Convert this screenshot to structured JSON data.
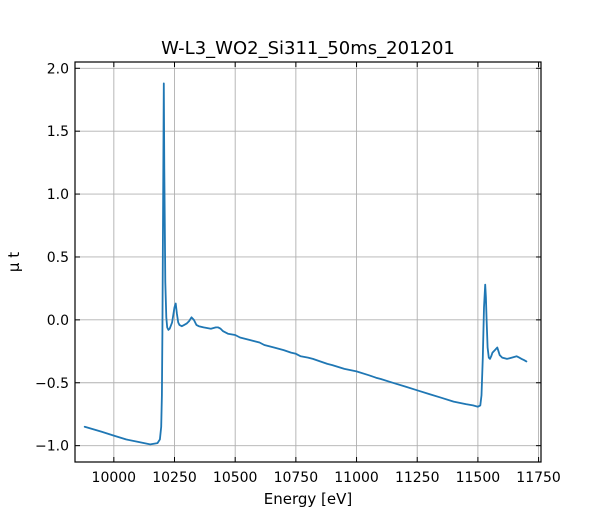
{
  "chart_data": {
    "type": "line",
    "title": "W-L3_WO2_Si311_50ms_201201",
    "xlabel": "Energy [eV]",
    "ylabel": "μ t",
    "xlim": [
      9840,
      11760
    ],
    "ylim": [
      -1.13,
      2.05
    ],
    "xticks": [
      10000,
      10250,
      10500,
      10750,
      11000,
      11250,
      11500,
      11750
    ],
    "yticks": [
      -1.0,
      -0.5,
      0.0,
      0.5,
      1.0,
      1.5,
      2.0
    ],
    "xtick_labels": [
      "10000",
      "10250",
      "10500",
      "10750",
      "11000",
      "11250",
      "11500",
      "11750"
    ],
    "ytick_labels": [
      "−1.0",
      "−0.5",
      "0.0",
      "0.5",
      "1.0",
      "1.5",
      "2.0"
    ],
    "grid": true,
    "tick_direction": "in",
    "line_color": "#1f77b4",
    "series": [
      {
        "x": [
          9880,
          9950,
          10000,
          10050,
          10100,
          10150,
          10180,
          10190,
          10195,
          10198,
          10200,
          10203,
          10206,
          10208,
          10212,
          10216,
          10220,
          10225,
          10230,
          10240,
          10250,
          10255,
          10260,
          10265,
          10270,
          10280,
          10290,
          10300,
          10310,
          10320,
          10330,
          10340,
          10350,
          10370,
          10400,
          10420,
          10430,
          10440,
          10450,
          10470,
          10500,
          10520,
          10540,
          10560,
          10580,
          10600,
          10620,
          10640,
          10660,
          10700,
          10730,
          10750,
          10770,
          10800,
          10820,
          10850,
          10880,
          10900,
          10950,
          11000,
          11050,
          11080,
          11100,
          11150,
          11200,
          11250,
          11300,
          11350,
          11400,
          11450,
          11480,
          11500,
          11510,
          11515,
          11520,
          11525,
          11530,
          11533,
          11536,
          11540,
          11545,
          11550,
          11555,
          11560,
          11570,
          11580,
          11585,
          11590,
          11600,
          11620,
          11640,
          11660,
          11670,
          11680,
          11690,
          11700
        ],
        "y": [
          -0.85,
          -0.89,
          -0.92,
          -0.95,
          -0.97,
          -0.99,
          -0.98,
          -0.95,
          -0.85,
          -0.6,
          -0.1,
          0.9,
          1.88,
          1.2,
          0.3,
          0.02,
          -0.06,
          -0.08,
          -0.07,
          -0.02,
          0.1,
          0.13,
          0.05,
          -0.02,
          -0.04,
          -0.05,
          -0.04,
          -0.03,
          -0.01,
          0.02,
          0.0,
          -0.04,
          -0.05,
          -0.06,
          -0.07,
          -0.06,
          -0.06,
          -0.07,
          -0.09,
          -0.11,
          -0.12,
          -0.14,
          -0.15,
          -0.16,
          -0.17,
          -0.18,
          -0.2,
          -0.21,
          -0.22,
          -0.24,
          -0.26,
          -0.27,
          -0.29,
          -0.3,
          -0.31,
          -0.33,
          -0.35,
          -0.36,
          -0.39,
          -0.41,
          -0.44,
          -0.46,
          -0.47,
          -0.5,
          -0.53,
          -0.56,
          -0.59,
          -0.62,
          -0.65,
          -0.67,
          -0.68,
          -0.69,
          -0.68,
          -0.6,
          -0.3,
          0.1,
          0.28,
          0.18,
          0.0,
          -0.22,
          -0.3,
          -0.31,
          -0.29,
          -0.26,
          -0.24,
          -0.22,
          -0.25,
          -0.28,
          -0.3,
          -0.31,
          -0.3,
          -0.29,
          -0.3,
          -0.31,
          -0.32,
          -0.33
        ]
      }
    ]
  }
}
